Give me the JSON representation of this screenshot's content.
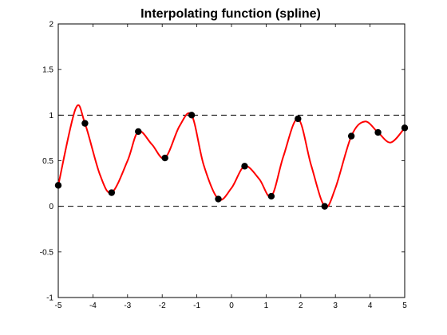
{
  "chart_data": {
    "type": "line",
    "title": "Interpolating function (spline)",
    "xlabel": "",
    "ylabel": "",
    "xlim": [
      -5,
      5
    ],
    "ylim": [
      -1,
      2
    ],
    "xticks": [
      "-5",
      "-4",
      "-3",
      "-2",
      "-1",
      "0",
      "1",
      "2",
      "3",
      "4",
      "5"
    ],
    "yticks": [
      "-1",
      "-0.5",
      "0",
      "0.5",
      "1",
      "1.5",
      "2"
    ],
    "grid": false,
    "reference_lines": [
      {
        "y": 0,
        "style": "dashed",
        "color": "#000000"
      },
      {
        "y": 1,
        "style": "dashed",
        "color": "#000000"
      }
    ],
    "series": [
      {
        "kind": "markers",
        "color": "#000000",
        "x": [
          -5,
          -4.23,
          -3.46,
          -2.69,
          -1.92,
          -1.15,
          -0.38,
          0.38,
          1.15,
          1.92,
          2.69,
          3.46,
          4.23,
          5
        ],
        "y": [
          0.23,
          0.91,
          0.15,
          0.82,
          0.53,
          1.0,
          0.08,
          0.44,
          0.11,
          0.96,
          0.0,
          0.77,
          0.81,
          0.86
        ]
      },
      {
        "kind": "line",
        "color": "#ff0000",
        "x": [
          -5,
          -4.5,
          -4.23,
          -3.8,
          -3.46,
          -3.0,
          -2.69,
          -2.3,
          -1.92,
          -1.5,
          -1.15,
          -0.8,
          -0.38,
          0.0,
          0.38,
          0.8,
          1.15,
          1.5,
          1.92,
          2.3,
          2.69,
          3.0,
          3.46,
          3.85,
          4.23,
          4.6,
          5
        ],
        "y": [
          0.23,
          1.07,
          0.91,
          0.35,
          0.15,
          0.5,
          0.82,
          0.68,
          0.53,
          0.88,
          1.0,
          0.45,
          0.08,
          0.2,
          0.44,
          0.3,
          0.11,
          0.55,
          0.96,
          0.45,
          0.0,
          0.2,
          0.77,
          0.93,
          0.81,
          0.7,
          0.86
        ]
      }
    ]
  }
}
